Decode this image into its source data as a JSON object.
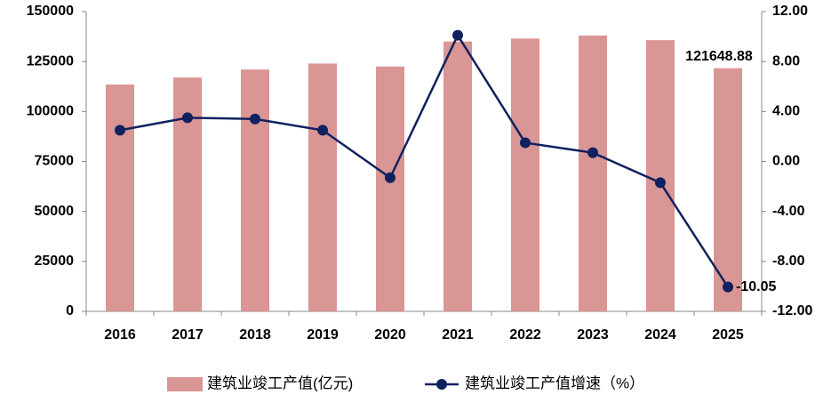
{
  "chart_data": {
    "type": "bar",
    "categories": [
      "2016",
      "2017",
      "2018",
      "2019",
      "2020",
      "2021",
      "2022",
      "2023",
      "2024",
      "2025"
    ],
    "series": [
      {
        "name": "建筑业竣工产值(亿元)",
        "type": "bar",
        "color": "#d99694",
        "values": [
          113500,
          117000,
          121000,
          124000,
          122500,
          135000,
          136500,
          138000,
          135700,
          121648.88
        ],
        "value_labels": [
          null,
          null,
          null,
          null,
          null,
          null,
          null,
          null,
          null,
          "121648.88"
        ]
      },
      {
        "name": "建筑业竣工产值增速（%）",
        "type": "line",
        "axis": "y2",
        "color": "#10215f",
        "values": [
          2.5,
          3.5,
          3.4,
          2.5,
          -1.3,
          10.1,
          1.5,
          0.7,
          -1.7,
          -10.05
        ],
        "value_labels": [
          null,
          null,
          null,
          null,
          null,
          null,
          null,
          null,
          null,
          "-10.05"
        ]
      }
    ],
    "ylim": [
      0,
      150000
    ],
    "yticks": [
      0,
      25000,
      50000,
      75000,
      100000,
      125000,
      150000
    ],
    "y2lim": [
      -12,
      12
    ],
    "y2ticks": [
      {
        "value": -12,
        "label": "-12.00"
      },
      {
        "value": -8,
        "label": "-8.00"
      },
      {
        "value": -4,
        "label": "-4.00"
      },
      {
        "value": 0,
        "label": "0.00"
      },
      {
        "value": 4,
        "label": "4.00"
      },
      {
        "value": 8,
        "label": "8.00"
      },
      {
        "value": 12,
        "label": "12.00"
      }
    ],
    "grid": false,
    "legend": "bottom"
  }
}
